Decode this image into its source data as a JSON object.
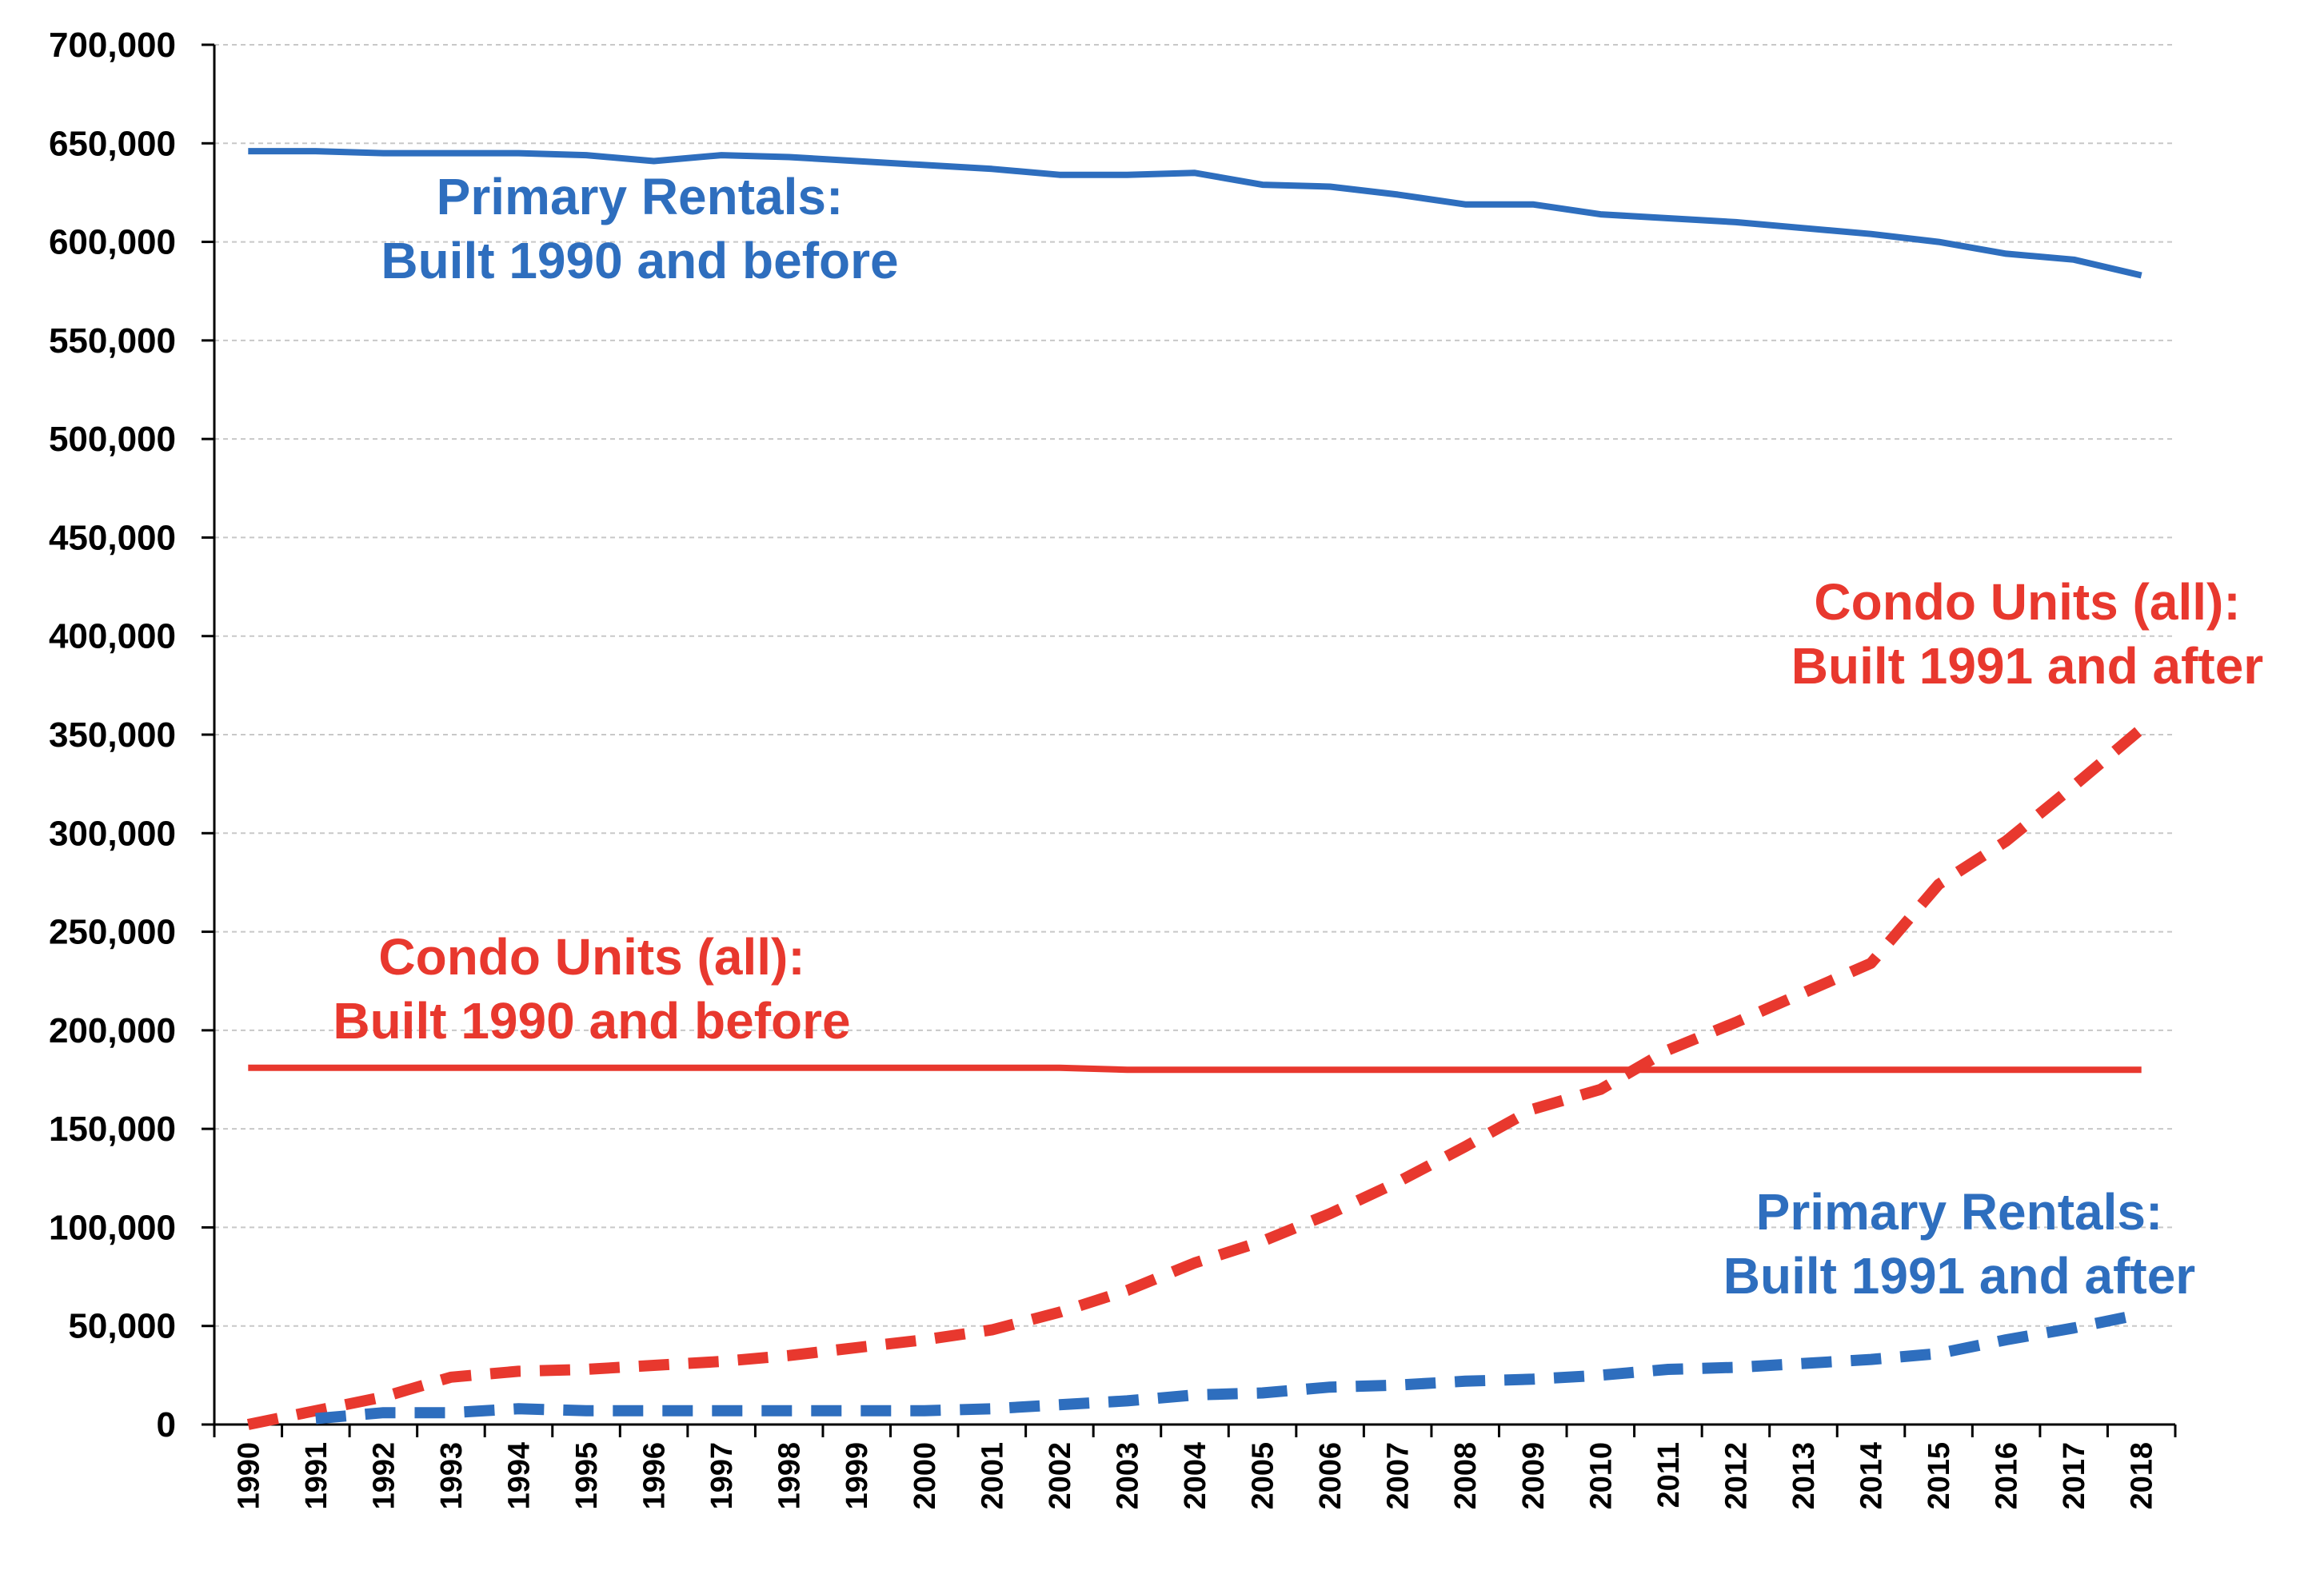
{
  "chart_data": {
    "type": "line",
    "title": "",
    "xlabel": "",
    "ylabel": "",
    "x": [
      "1990",
      "1991",
      "1992",
      "1993",
      "1994",
      "1995",
      "1996",
      "1997",
      "1998",
      "1999",
      "2000",
      "2001",
      "2002",
      "2003",
      "2004",
      "2005",
      "2006",
      "2007",
      "2008",
      "2009",
      "2010",
      "2011",
      "2012",
      "2013",
      "2014",
      "2015",
      "2016",
      "2017",
      "2018"
    ],
    "ylim": [
      0,
      700000
    ],
    "y_ticks": [
      "0",
      "50,000",
      "100,000",
      "150,000",
      "200,000",
      "250,000",
      "300,000",
      "350,000",
      "400,000",
      "450,000",
      "500,000",
      "550,000",
      "600,000",
      "650,000",
      "700,000"
    ],
    "grid": "horizontal dashed",
    "legend": "none (inline labels)",
    "series": [
      {
        "name": "Primary Rentals: Built 1990 and before",
        "style": "solid",
        "color": "#2E6EBE",
        "values": [
          646000,
          646000,
          645000,
          645000,
          645000,
          644000,
          641000,
          644000,
          643000,
          641000,
          639000,
          637000,
          634000,
          634000,
          635000,
          629000,
          628000,
          624000,
          619000,
          619000,
          614000,
          612000,
          610000,
          607000,
          604000,
          600000,
          594000,
          591000,
          583000
        ]
      },
      {
        "name": "Condo Units (all): Built 1990 and before",
        "style": "solid",
        "color": "#E8382E",
        "values": [
          181000,
          181000,
          181000,
          181000,
          181000,
          181000,
          181000,
          181000,
          181000,
          181000,
          181000,
          181000,
          181000,
          180000,
          180000,
          180000,
          180000,
          180000,
          180000,
          180000,
          180000,
          180000,
          180000,
          180000,
          180000,
          180000,
          180000,
          180000,
          180000
        ]
      },
      {
        "name": "Condo Units (all): Built 1991 and after",
        "style": "dashed",
        "color": "#E8382E",
        "values": [
          0,
          7000,
          14000,
          24000,
          27000,
          28000,
          30000,
          32000,
          35000,
          39000,
          43000,
          48000,
          57000,
          68000,
          82000,
          93000,
          107000,
          123000,
          141000,
          160000,
          170000,
          190000,
          204000,
          219000,
          234000,
          274000,
          296000,
          324000,
          353000
        ]
      },
      {
        "name": "Primary Rentals: Built 1991 and after",
        "style": "dashed",
        "color": "#2E6EBE",
        "values": [
          null,
          3000,
          6000,
          6000,
          8000,
          7000,
          7000,
          7000,
          7000,
          7000,
          7000,
          8000,
          10000,
          12000,
          15000,
          16000,
          19000,
          20000,
          22000,
          23000,
          25000,
          28000,
          29000,
          31000,
          33000,
          36000,
          43000,
          49000,
          56000
        ]
      }
    ],
    "annotations": [
      {
        "line1": "Primary Rentals:",
        "line2": "Built 1990 and before",
        "color": "#2E6EBE"
      },
      {
        "line1": "Condo Units (all):",
        "line2": "Built 1991 and after",
        "color": "#E8382E"
      },
      {
        "line1": "Condo Units (all):",
        "line2": "Built 1990 and before",
        "color": "#E8382E"
      },
      {
        "line1": "Primary Rentals:",
        "line2": "Built 1991 and after",
        "color": "#2E6EBE"
      }
    ]
  }
}
